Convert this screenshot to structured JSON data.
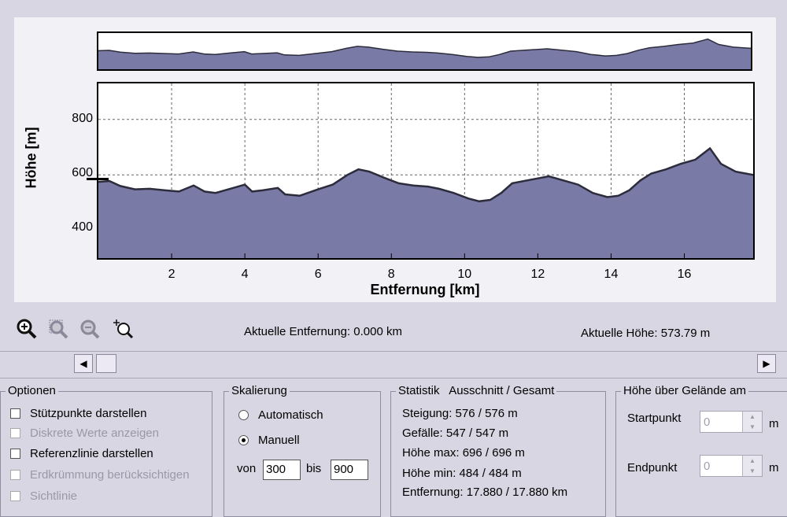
{
  "chart": {
    "ylabel": "Höhe [m]",
    "xlabel": "Entfernung [km]",
    "yticks": [
      "800",
      "600",
      "400"
    ],
    "xticks": [
      "2",
      "4",
      "6",
      "8",
      "10",
      "12",
      "14",
      "16"
    ],
    "fill_color": "#7a7aa6",
    "line_color": "#2c2c3c"
  },
  "chart_data": {
    "type": "area",
    "xlabel": "Entfernung [km]",
    "ylabel": "Höhe [m]",
    "xlim": [
      0,
      17.88
    ],
    "ylim": [
      300,
      930
    ],
    "grid": true,
    "x": [
      0,
      0.3,
      0.6,
      1,
      1.4,
      1.8,
      2.2,
      2.6,
      2.9,
      3.2,
      3.6,
      4,
      4.2,
      4.5,
      4.9,
      5.1,
      5.5,
      6,
      6.4,
      6.8,
      7.1,
      7.4,
      7.8,
      8.2,
      8.6,
      9,
      9.3,
      9.7,
      10.1,
      10.4,
      10.7,
      11,
      11.3,
      11.7,
      12.1,
      12.3,
      12.7,
      13.1,
      13.5,
      13.9,
      14.2,
      14.5,
      14.8,
      15.1,
      15.5,
      15.9,
      16.3,
      16.7,
      17,
      17.4,
      17.88
    ],
    "y": [
      575,
      578,
      560,
      548,
      550,
      545,
      540,
      562,
      540,
      535,
      550,
      565,
      540,
      545,
      553,
      530,
      525,
      548,
      565,
      600,
      620,
      612,
      590,
      570,
      562,
      558,
      550,
      535,
      515,
      505,
      510,
      535,
      570,
      580,
      590,
      595,
      580,
      565,
      535,
      520,
      525,
      545,
      580,
      605,
      620,
      640,
      655,
      696,
      640,
      612,
      600
    ]
  },
  "toolbar": {
    "icons": [
      "zoom-in-icon",
      "zoom-area-icon",
      "zoom-out-icon",
      "zoom-fit-icon"
    ]
  },
  "status": {
    "current_distance": "Aktuelle Entfernung: 0.000 km",
    "current_height": "Aktuelle Höhe: 573.79 m"
  },
  "options": {
    "title": "Optionen",
    "items": [
      {
        "label": "Stützpunkte darstellen",
        "enabled": true
      },
      {
        "label": "Diskrete Werte anzeigen",
        "enabled": false
      },
      {
        "label": "Referenzlinie darstellen",
        "enabled": true
      },
      {
        "label": "Erdkrümmung berücksichtigen",
        "enabled": false
      },
      {
        "label": "Sichtlinie",
        "enabled": false
      }
    ]
  },
  "scaling": {
    "title": "Skalierung",
    "auto_label": "Automatisch",
    "manual_label": "Manuell",
    "from_label": "von",
    "from_value": "300",
    "to_label": "bis",
    "to_value": "900"
  },
  "stats": {
    "title": "Statistik   Ausschnitt / Gesamt",
    "lines": [
      "Steigung: 576 / 576 m",
      "Gefälle: 547 / 547 m",
      "Höhe max: 696 / 696 m",
      "Höhe min: 484 / 484 m",
      "Entfernung: 17.880 / 17.880 km"
    ]
  },
  "ground": {
    "title": "Höhe über Gelände am",
    "start_label": "Startpunkt",
    "start_value": "0",
    "end_label": "Endpunkt",
    "end_value": "0",
    "unit": "m"
  }
}
